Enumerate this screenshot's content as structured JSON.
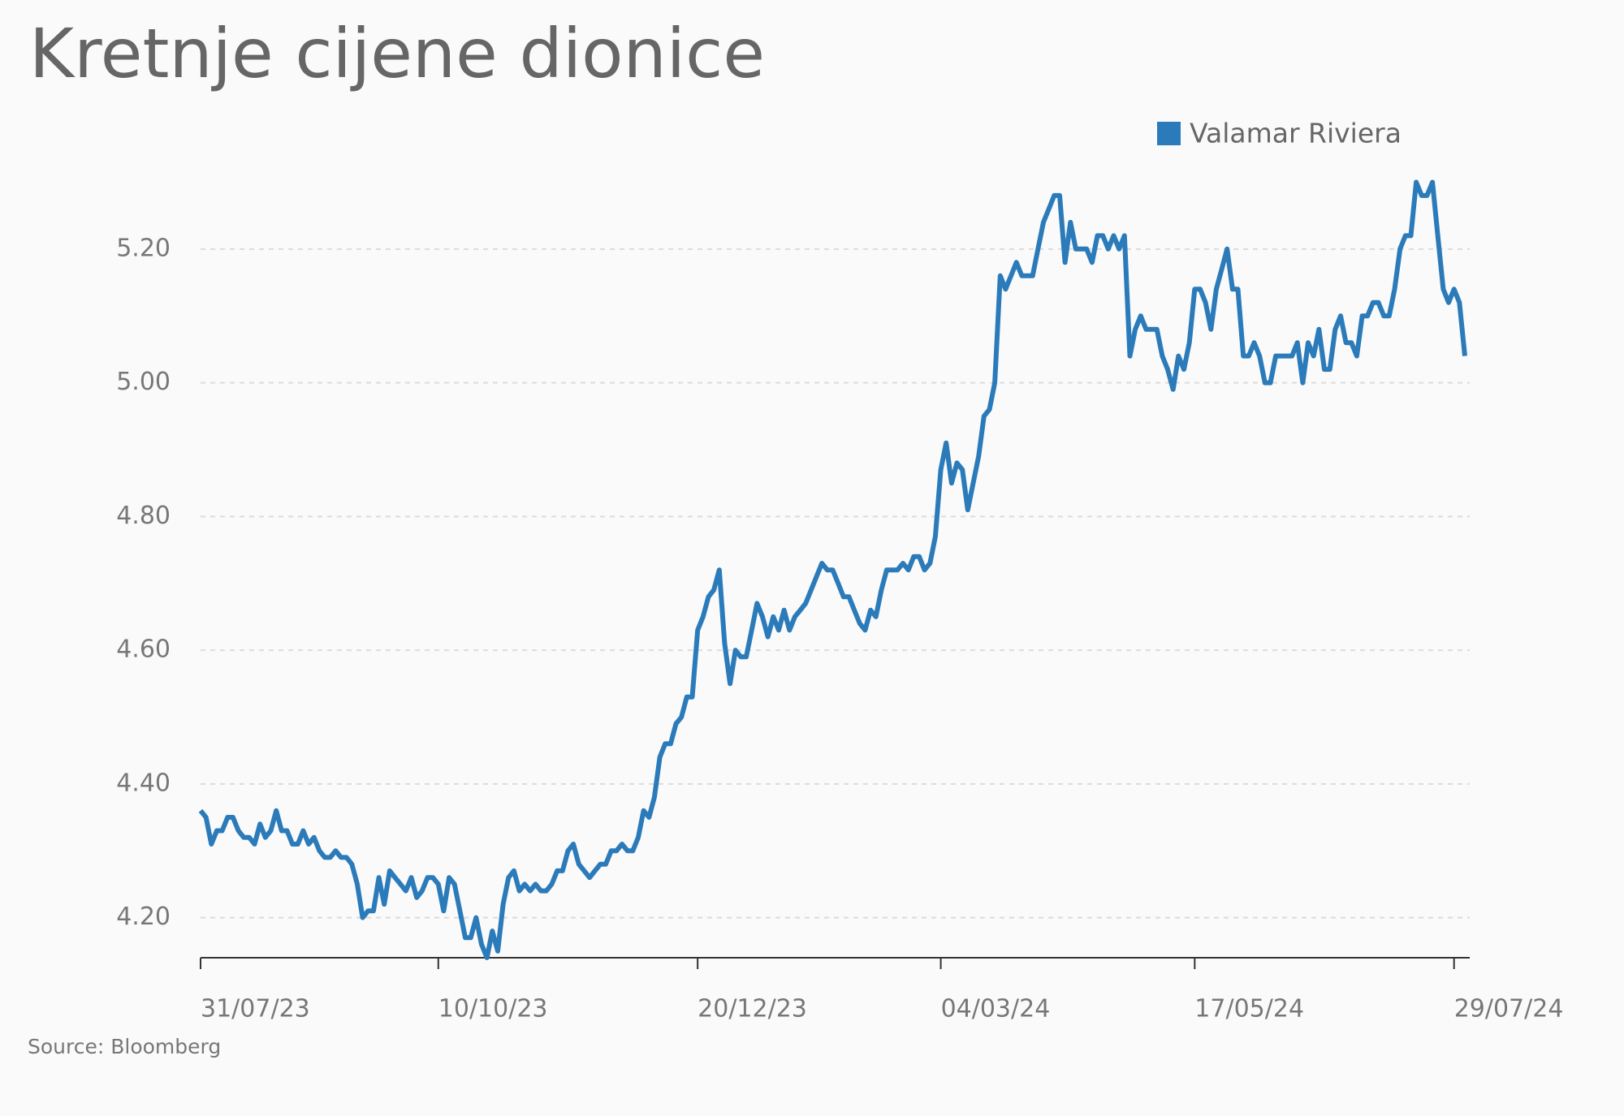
{
  "chart_data": {
    "type": "line",
    "title": "Kretnje cijene dionice",
    "source": "Source: Bloomberg",
    "legend": "top-right",
    "grid": true,
    "ylim": [
      4.14,
      5.32
    ],
    "yticks": [
      {
        "value": 4.2,
        "label": "4.20"
      },
      {
        "value": 4.4,
        "label": "4.40"
      },
      {
        "value": 4.6,
        "label": "4.60"
      },
      {
        "value": 4.8,
        "label": "4.80"
      },
      {
        "value": 5.0,
        "label": "5.00"
      },
      {
        "value": 5.2,
        "label": "5.20"
      }
    ],
    "categories": [
      "31/07/23",
      null,
      null,
      null,
      null,
      null,
      null,
      null,
      null,
      null,
      null,
      null,
      null,
      null,
      null,
      null,
      null,
      null,
      null,
      null,
      null,
      null,
      null,
      null,
      null,
      null,
      null,
      null,
      null,
      null,
      null,
      null,
      null,
      null,
      null,
      null,
      null,
      null,
      null,
      null,
      null,
      null,
      null,
      null,
      "10/10/23",
      null,
      null,
      null,
      null,
      null,
      null,
      null,
      null,
      null,
      null,
      null,
      null,
      null,
      null,
      null,
      null,
      null,
      null,
      null,
      null,
      null,
      null,
      null,
      null,
      null,
      null,
      null,
      null,
      null,
      null,
      null,
      null,
      null,
      null,
      null,
      null,
      null,
      null,
      null,
      null,
      null,
      null,
      null,
      null,
      null,
      null,
      null,
      "20/12/23",
      null,
      null,
      null,
      null,
      null,
      null,
      null,
      null,
      null,
      null,
      null,
      null,
      null,
      null,
      null,
      null,
      null,
      null,
      null,
      null,
      null,
      null,
      null,
      null,
      null,
      null,
      null,
      null,
      null,
      null,
      null,
      null,
      null,
      null,
      null,
      null,
      null,
      null,
      null,
      null,
      null,
      null,
      null,
      null,
      "04/03/24",
      null,
      null,
      null,
      null,
      null,
      null,
      null,
      null,
      null,
      null,
      null,
      null,
      null,
      null,
      null,
      null,
      null,
      null,
      null,
      null,
      null,
      null,
      null,
      null,
      null,
      null,
      null,
      null,
      null,
      null,
      null,
      null,
      null,
      null,
      null,
      null,
      null,
      null,
      null,
      null,
      null,
      null,
      null,
      null,
      null,
      null,
      "17/05/24",
      null,
      null,
      null,
      null,
      null,
      null,
      null,
      null,
      null,
      null,
      null,
      null,
      null,
      null,
      null,
      null,
      null,
      null,
      null,
      null,
      null,
      null,
      null,
      null,
      null,
      null,
      null,
      null,
      null,
      null,
      null,
      null,
      null,
      null,
      null,
      null,
      null,
      null,
      null,
      null,
      null,
      null,
      null,
      null,
      null,
      null,
      null,
      "29/07/24",
      null,
      null
    ],
    "series": [
      {
        "name": "Valamar Riviera",
        "color": "#2b7bba",
        "values": [
          4.36,
          4.35,
          4.31,
          4.33,
          4.33,
          4.35,
          4.35,
          4.33,
          4.32,
          4.32,
          4.31,
          4.34,
          4.32,
          4.33,
          4.36,
          4.33,
          4.33,
          4.31,
          4.31,
          4.33,
          4.31,
          4.32,
          4.3,
          4.29,
          4.29,
          4.3,
          4.29,
          4.29,
          4.28,
          4.25,
          4.2,
          4.21,
          4.21,
          4.26,
          4.22,
          4.27,
          4.26,
          4.25,
          4.24,
          4.26,
          4.23,
          4.24,
          4.26,
          4.26,
          4.25,
          4.21,
          4.26,
          4.25,
          4.21,
          4.17,
          4.17,
          4.2,
          4.16,
          4.14,
          4.18,
          4.15,
          4.22,
          4.26,
          4.27,
          4.24,
          4.25,
          4.24,
          4.25,
          4.24,
          4.24,
          4.25,
          4.27,
          4.27,
          4.3,
          4.31,
          4.28,
          4.27,
          4.26,
          4.27,
          4.28,
          4.28,
          4.3,
          4.3,
          4.31,
          4.3,
          4.3,
          4.32,
          4.36,
          4.35,
          4.38,
          4.44,
          4.46,
          4.46,
          4.49,
          4.5,
          4.53,
          4.53,
          4.63,
          4.65,
          4.68,
          4.69,
          4.72,
          4.61,
          4.55,
          4.6,
          4.59,
          4.59,
          4.63,
          4.67,
          4.65,
          4.62,
          4.65,
          4.63,
          4.66,
          4.63,
          4.65,
          4.66,
          4.67,
          4.69,
          4.71,
          4.73,
          4.72,
          4.72,
          4.7,
          4.68,
          4.68,
          4.66,
          4.64,
          4.63,
          4.66,
          4.65,
          4.69,
          4.72,
          4.72,
          4.72,
          4.73,
          4.72,
          4.74,
          4.74,
          4.72,
          4.73,
          4.77,
          4.87,
          4.91,
          4.85,
          4.88,
          4.87,
          4.81,
          4.85,
          4.89,
          4.95,
          4.96,
          5.0,
          5.16,
          5.14,
          5.16,
          5.18,
          5.16,
          5.16,
          5.16,
          5.2,
          5.24,
          5.26,
          5.28,
          5.28,
          5.18,
          5.24,
          5.2,
          5.2,
          5.2,
          5.18,
          5.22,
          5.22,
          5.2,
          5.22,
          5.2,
          5.22,
          5.04,
          5.08,
          5.1,
          5.08,
          5.08,
          5.08,
          5.04,
          5.02,
          4.99,
          5.04,
          5.02,
          5.06,
          5.14,
          5.14,
          5.12,
          5.08,
          5.14,
          5.17,
          5.2,
          5.14,
          5.14,
          5.04,
          5.04,
          5.06,
          5.04,
          5.0,
          5.0,
          5.04,
          5.04,
          5.04,
          5.04,
          5.06,
          5.0,
          5.06,
          5.04,
          5.08,
          5.02,
          5.02,
          5.08,
          5.1,
          5.06,
          5.06,
          5.04,
          5.1,
          5.1,
          5.12,
          5.12,
          5.1,
          5.1,
          5.14,
          5.2,
          5.22,
          5.22,
          5.3,
          5.28,
          5.28,
          5.3,
          5.22,
          5.14,
          5.12,
          5.14,
          5.12,
          5.04
        ]
      }
    ]
  }
}
